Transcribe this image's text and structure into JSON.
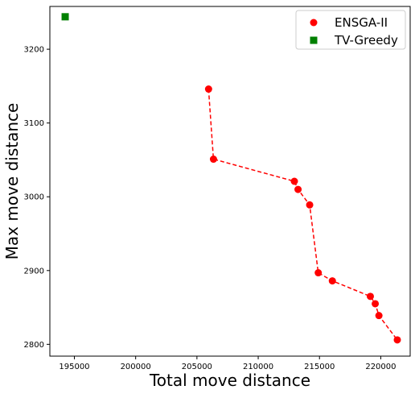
{
  "chart_data": {
    "type": "scatter",
    "title": "",
    "xlabel": "Total move distance",
    "ylabel": "Max move distance",
    "xlim": [
      193000,
      222400
    ],
    "ylim": [
      2784,
      3258
    ],
    "xticks": [
      195000,
      200000,
      205000,
      210000,
      215000,
      220000
    ],
    "yticks": [
      2800,
      2900,
      3000,
      3100,
      3200
    ],
    "xtick_labels": [
      "195000",
      "200000",
      "205000",
      "210000",
      "215000",
      "220000"
    ],
    "ytick_labels": [
      "2800",
      "2900",
      "3000",
      "3100",
      "3200"
    ],
    "grid": false,
    "legend_position": "top-right",
    "series": [
      {
        "name": "ENSGA-II",
        "marker": "circle",
        "color": "#ff0000",
        "line": "dashed",
        "points": [
          [
            205950,
            3146
          ],
          [
            206350,
            3051
          ],
          [
            212950,
            3021
          ],
          [
            213250,
            3010
          ],
          [
            214200,
            2989
          ],
          [
            214900,
            2897
          ],
          [
            216050,
            2886
          ],
          [
            219150,
            2865
          ],
          [
            219550,
            2855
          ],
          [
            219850,
            2839
          ],
          [
            221350,
            2806
          ]
        ]
      },
      {
        "name": "TV-Greedy",
        "marker": "square",
        "color": "#008000",
        "line": "none",
        "points": [
          [
            194250,
            3244
          ]
        ]
      }
    ]
  }
}
